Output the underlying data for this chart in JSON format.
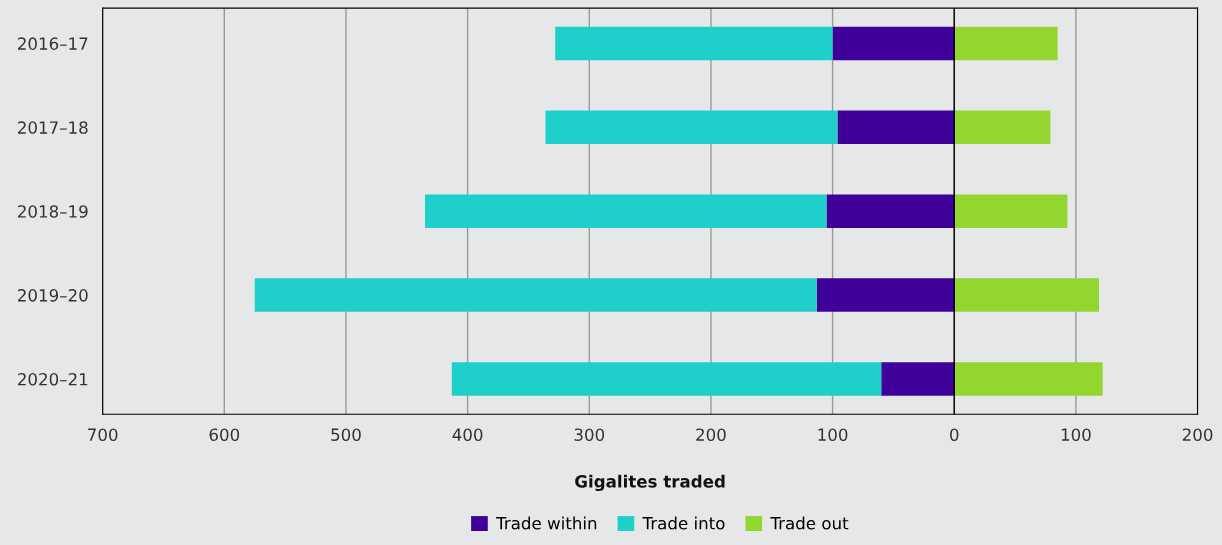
{
  "chart_data": {
    "type": "bar",
    "orientation": "horizontal",
    "stacked": true,
    "xlabel": "Gigalites traded",
    "categories": [
      "2016–17",
      "2017–18",
      "2018–19",
      "2019–20",
      "2020–21"
    ],
    "series": [
      {
        "name": "Trade within",
        "color": "#40009a",
        "values": [
          -100,
          -96,
          -105,
          -113,
          -60
        ]
      },
      {
        "name": "Trade into",
        "color": "#1fcfca",
        "values": [
          -228,
          -240,
          -330,
          -462,
          -353
        ]
      },
      {
        "name": "Trade out",
        "color": "#94d630",
        "values": [
          85,
          79,
          93,
          119,
          122
        ]
      }
    ],
    "xlim": [
      -700,
      200
    ],
    "xticks": [
      {
        "value": -700,
        "label": "700"
      },
      {
        "value": -600,
        "label": "600"
      },
      {
        "value": -500,
        "label": "500"
      },
      {
        "value": -400,
        "label": "400"
      },
      {
        "value": -300,
        "label": "300"
      },
      {
        "value": -200,
        "label": "200"
      },
      {
        "value": -100,
        "label": "100"
      },
      0,
      100,
      200
    ],
    "ref_lines": [
      {
        "axis": "x",
        "value": 0,
        "color": "#000000"
      }
    ],
    "grid": "x",
    "legend": "bottom"
  }
}
